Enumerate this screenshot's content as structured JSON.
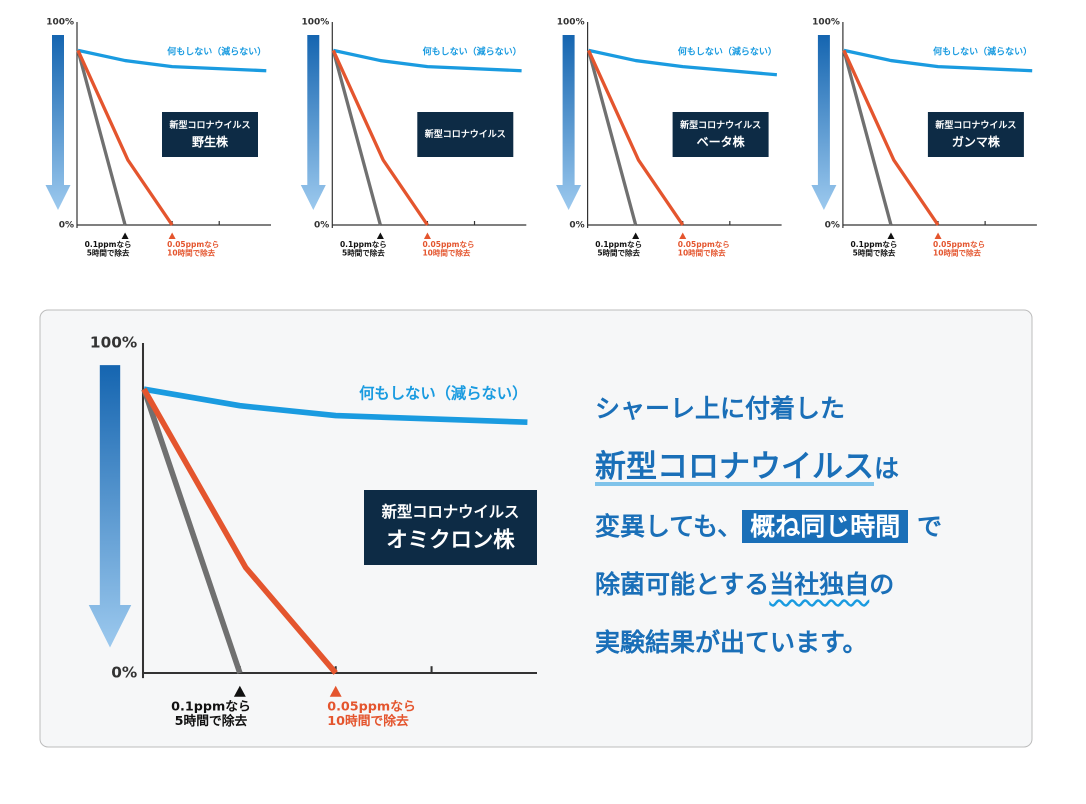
{
  "chart_data": [
    {
      "type": "line",
      "label": [
        "新型コロナウイルス",
        "野生株"
      ],
      "ylim": [
        0,
        100
      ],
      "yticks": [
        {
          "value": 0,
          "label": "0%"
        },
        {
          "value": 100,
          "label": "100%"
        }
      ],
      "xlim": [
        0,
        20.5
      ],
      "xticks": [
        5,
        10,
        15
      ],
      "series": [
        {
          "name": "何もしない（減らない）",
          "color": "#1a9be0",
          "x": [
            0,
            5,
            10,
            20
          ],
          "values": [
            86,
            81,
            78,
            76
          ]
        },
        {
          "color": "#707070",
          "x": [
            0,
            5
          ],
          "values": [
            86,
            0
          ],
          "annotation": [
            "0.1ppmなら",
            "5時間で除去"
          ]
        },
        {
          "color": "#e4552e",
          "x": [
            0,
            5.3,
            10
          ],
          "values": [
            86,
            32,
            0
          ],
          "annotation": [
            "0.05ppmなら",
            "10時間で除去"
          ]
        }
      ]
    },
    {
      "type": "line",
      "label": [
        "新型コロナウイルス"
      ],
      "ylim": [
        0,
        100
      ],
      "yticks": [
        {
          "value": 0,
          "label": "0%"
        },
        {
          "value": 100,
          "label": "100%"
        }
      ],
      "xlim": [
        0,
        20.5
      ],
      "xticks": [
        5,
        10,
        15
      ],
      "series": [
        {
          "name": "何もしない（減らない）",
          "color": "#1a9be0",
          "x": [
            0,
            5,
            10,
            20
          ],
          "values": [
            86,
            81,
            78,
            76
          ]
        },
        {
          "color": "#707070",
          "x": [
            0,
            5
          ],
          "values": [
            86,
            0
          ],
          "annotation": [
            "0.1ppmなら",
            "5時間で除去"
          ]
        },
        {
          "color": "#e4552e",
          "x": [
            0,
            5.3,
            10
          ],
          "values": [
            86,
            32,
            0
          ],
          "annotation": [
            "0.05ppmなら",
            "10時間で除去"
          ]
        }
      ]
    },
    {
      "type": "line",
      "label": [
        "新型コロナウイルス",
        "ベータ株"
      ],
      "ylim": [
        0,
        100
      ],
      "yticks": [
        {
          "value": 0,
          "label": "0%"
        },
        {
          "value": 100,
          "label": "100%"
        }
      ],
      "xlim": [
        0,
        20.5
      ],
      "xticks": [
        5,
        10,
        15
      ],
      "series": [
        {
          "name": "何もしない（減らない）",
          "color": "#1a9be0",
          "x": [
            0,
            5,
            10,
            20
          ],
          "values": [
            86,
            81,
            78,
            74
          ]
        },
        {
          "color": "#707070",
          "x": [
            0,
            5
          ],
          "values": [
            86,
            0
          ],
          "annotation": [
            "0.1ppmなら",
            "5時間で除去"
          ]
        },
        {
          "color": "#e4552e",
          "x": [
            0,
            5.3,
            10
          ],
          "values": [
            86,
            32,
            0
          ],
          "annotation": [
            "0.05ppmなら",
            "10時間で除去"
          ]
        }
      ]
    },
    {
      "type": "line",
      "label": [
        "新型コロナウイルス",
        "ガンマ株"
      ],
      "ylim": [
        0,
        100
      ],
      "yticks": [
        {
          "value": 0,
          "label": "0%"
        },
        {
          "value": 100,
          "label": "100%"
        }
      ],
      "xlim": [
        0,
        20.5
      ],
      "xticks": [
        5,
        10,
        15
      ],
      "series": [
        {
          "name": "何もしない（減らない）",
          "color": "#1a9be0",
          "x": [
            0,
            5,
            10,
            20
          ],
          "values": [
            86,
            81,
            78,
            76
          ]
        },
        {
          "color": "#707070",
          "x": [
            0,
            5
          ],
          "values": [
            86,
            0
          ],
          "annotation": [
            "0.1ppmなら",
            "5時間で除去"
          ]
        },
        {
          "color": "#e4552e",
          "x": [
            0,
            5.3,
            10
          ],
          "values": [
            86,
            32,
            0
          ],
          "annotation": [
            "0.05ppmなら",
            "10時間で除去"
          ]
        }
      ]
    },
    {
      "type": "line",
      "label": [
        "新型コロナウイルス",
        "オミクロン株"
      ],
      "ylim": [
        0,
        100
      ],
      "yticks": [
        {
          "value": 0,
          "label": "0%"
        },
        {
          "value": 100,
          "label": "100%"
        }
      ],
      "xlim": [
        0,
        20.5
      ],
      "xticks": [
        5,
        10,
        15
      ],
      "series": [
        {
          "name": "何もしない（減らない）",
          "color": "#1a9be0",
          "x": [
            0,
            5,
            10,
            20
          ],
          "values": [
            86,
            81,
            78,
            76
          ]
        },
        {
          "color": "#707070",
          "x": [
            0,
            5
          ],
          "values": [
            86,
            0
          ],
          "annotation": [
            "0.1ppmなら",
            "5時間で除去"
          ]
        },
        {
          "color": "#e4552e",
          "x": [
            0,
            5.3,
            10
          ],
          "values": [
            86,
            32,
            0
          ],
          "annotation": [
            "0.05ppmなら",
            "10時間で除去"
          ]
        }
      ]
    }
  ],
  "message": {
    "line1": "シャーレ上に付着した",
    "line2": [
      "新型コロナウイルス",
      "は"
    ],
    "line3": [
      "変異しても、",
      "概ね同じ時間",
      "で"
    ],
    "line4": [
      "除菌可能とする",
      "当社独自",
      "の"
    ],
    "line5": "実験結果が出ています。"
  }
}
